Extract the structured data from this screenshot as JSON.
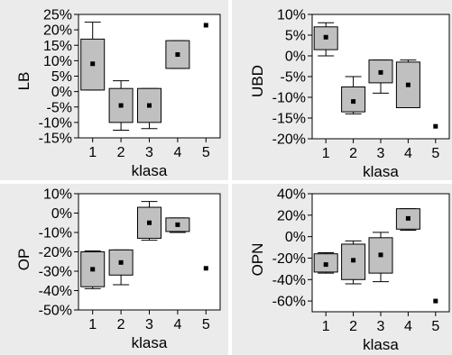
{
  "colors": {
    "panel_background": "#ebebeb",
    "plot_background": "#ffffff",
    "box_fill": "#c0c0c0",
    "box_stroke": "#000000",
    "mean_marker": "#000000"
  },
  "chart_data": [
    {
      "type": "box",
      "title": "",
      "xlabel": "klasa",
      "ylabel": "LB",
      "ylim": [
        -15,
        25
      ],
      "ytick_values": [
        -15,
        -10,
        -5,
        0,
        5,
        10,
        15,
        20,
        25
      ],
      "ytick_labels": [
        "-15%",
        "-10%",
        "-5%",
        "0%",
        "5%",
        "10%",
        "15%",
        "20%",
        "25%"
      ],
      "categories": [
        "1",
        "2",
        "3",
        "4",
        "5"
      ],
      "boxes": [
        {
          "category": "1",
          "whisker_low": 0.5,
          "q1": 0.5,
          "q3": 17,
          "whisker_high": 22.5,
          "mean": 9
        },
        {
          "category": "2",
          "whisker_low": -12.5,
          "q1": -10,
          "q3": 1,
          "whisker_high": 3.5,
          "mean": -4.5
        },
        {
          "category": "3",
          "whisker_low": -12,
          "q1": -10,
          "q3": 1,
          "whisker_high": 1,
          "mean": -4.5
        },
        {
          "category": "4",
          "whisker_low": 7.5,
          "q1": 7.5,
          "q3": 16.5,
          "whisker_high": 16.5,
          "mean": 12
        },
        {
          "category": "5",
          "mean": 21.5
        }
      ]
    },
    {
      "type": "box",
      "title": "",
      "xlabel": "klasa",
      "ylabel": "UBD",
      "ylim": [
        -20,
        10
      ],
      "ytick_values": [
        -20,
        -15,
        -10,
        -5,
        0,
        5,
        10
      ],
      "ytick_labels": [
        "-20%",
        "-15%",
        "-10%",
        "-5%",
        "0%",
        "5%",
        "10%"
      ],
      "categories": [
        "1",
        "2",
        "3",
        "4",
        "5"
      ],
      "boxes": [
        {
          "category": "1",
          "whisker_low": 0,
          "q1": 1.5,
          "q3": 7,
          "whisker_high": 8,
          "mean": 4.5
        },
        {
          "category": "2",
          "whisker_low": -14,
          "q1": -13.5,
          "q3": -7.5,
          "whisker_high": -5,
          "mean": -11
        },
        {
          "category": "3",
          "whisker_low": -9,
          "q1": -6.5,
          "q3": -1,
          "whisker_high": -1,
          "mean": -4
        },
        {
          "category": "4",
          "whisker_low": -12.5,
          "q1": -12.5,
          "q3": -1.5,
          "whisker_high": -1,
          "mean": -7
        },
        {
          "category": "5",
          "mean": -17
        }
      ]
    },
    {
      "type": "box",
      "title": "",
      "xlabel": "klasa",
      "ylabel": "OP",
      "ylim": [
        -50,
        10
      ],
      "ytick_values": [
        -50,
        -40,
        -30,
        -20,
        -10,
        0,
        10
      ],
      "ytick_labels": [
        "-50%",
        "-40%",
        "-30%",
        "-20%",
        "-10%",
        "0%",
        "10%"
      ],
      "categories": [
        "1",
        "2",
        "3",
        "4",
        "5"
      ],
      "boxes": [
        {
          "category": "1",
          "whisker_low": -39,
          "q1": -38,
          "q3": -20,
          "whisker_high": -19.5,
          "mean": -29
        },
        {
          "category": "2",
          "whisker_low": -37,
          "q1": -32,
          "q3": -19,
          "whisker_high": -19,
          "mean": -25.5
        },
        {
          "category": "3",
          "whisker_low": -14,
          "q1": -13,
          "q3": 3,
          "whisker_high": 6,
          "mean": -5
        },
        {
          "category": "4",
          "whisker_low": -10,
          "q1": -9.5,
          "q3": -2.5,
          "whisker_high": -2.5,
          "mean": -6
        },
        {
          "category": "5",
          "mean": -28.5
        }
      ]
    },
    {
      "type": "box",
      "title": "",
      "xlabel": "klasa",
      "ylabel": "OPN",
      "ylim": [
        -70,
        40
      ],
      "ytick_values": [
        -60,
        -40,
        -20,
        0,
        20,
        40
      ],
      "ytick_labels": [
        "-60%",
        "-40%",
        "-20%",
        "0%",
        "20%",
        "40%"
      ],
      "categories": [
        "1",
        "2",
        "3",
        "4",
        "5"
      ],
      "boxes": [
        {
          "category": "1",
          "whisker_low": -34,
          "q1": -33,
          "q3": -16,
          "whisker_high": -15,
          "mean": -26
        },
        {
          "category": "2",
          "whisker_low": -44,
          "q1": -40,
          "q3": -7,
          "whisker_high": -4,
          "mean": -22
        },
        {
          "category": "3",
          "whisker_low": -42,
          "q1": -34,
          "q3": -1,
          "whisker_high": 4,
          "mean": -17
        },
        {
          "category": "4",
          "whisker_low": 6,
          "q1": 7,
          "q3": 26,
          "whisker_high": 26,
          "mean": 17
        },
        {
          "category": "5",
          "mean": -60
        }
      ]
    }
  ]
}
